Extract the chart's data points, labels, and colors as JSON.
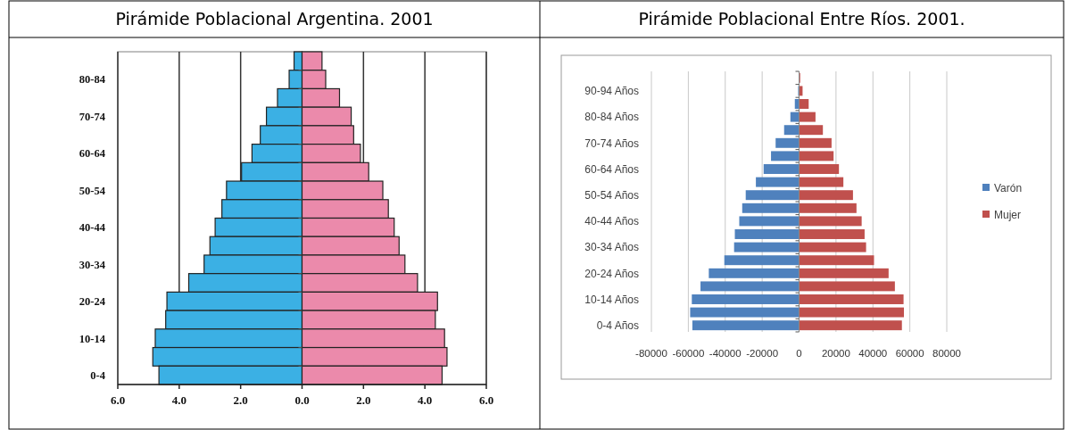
{
  "chart_data": [
    {
      "type": "bar",
      "title": "Pirámide Poblacional Argentina. 2001",
      "orientation": "horizontal",
      "stacked": true,
      "categories": [
        null,
        "80-84",
        null,
        "70-74",
        null,
        "60-64",
        null,
        "50-54",
        null,
        "40-44",
        null,
        "30-34",
        null,
        "20-24",
        null,
        "10-14",
        null,
        "0-4"
      ],
      "series": [
        {
          "color": "#3bb0e4",
          "values": [
            -0.26,
            -0.42,
            -0.8,
            -1.16,
            -1.36,
            -1.63,
            -1.97,
            -2.46,
            -2.61,
            -2.83,
            -3.0,
            -3.19,
            -3.69,
            -4.4,
            -4.44,
            -4.78,
            -4.86,
            -4.66
          ]
        },
        {
          "color": "#eb8aab",
          "values": [
            0.65,
            0.77,
            1.22,
            1.6,
            1.68,
            1.9,
            2.17,
            2.63,
            2.81,
            3.0,
            3.16,
            3.35,
            3.76,
            4.41,
            4.34,
            4.64,
            4.72,
            4.56
          ]
        }
      ],
      "xlim": [
        -6,
        6
      ],
      "xticks": [
        {
          "value": -6,
          "label": "6.0"
        },
        {
          "value": -4,
          "label": "4.0"
        },
        {
          "value": -2,
          "label": "2.0"
        },
        {
          "value": 0,
          "label": "0.0"
        },
        {
          "value": 2,
          "label": "2.0"
        },
        {
          "value": 4,
          "label": "4.0"
        },
        {
          "value": 6,
          "label": "6.0"
        }
      ],
      "grid": "x"
    },
    {
      "type": "bar",
      "title": "Pirámide Poblacional Entre Ríos. 2001.",
      "orientation": "horizontal",
      "stacked": true,
      "categories": [
        null,
        "90-94 Años",
        null,
        "80-84 Años",
        null,
        "70-74 Años",
        null,
        "60-64 Años",
        null,
        "50-54 Años",
        null,
        "40-44 Años",
        null,
        "30-34 Años",
        null,
        "20-24 Años",
        null,
        "10-14 Años",
        null,
        "0-4 Años"
      ],
      "series": [
        {
          "name": "Varón",
          "color": "#4f81bd",
          "values": [
            -100,
            -500,
            -2300,
            -4700,
            -8100,
            -12700,
            -15200,
            -19200,
            -23400,
            -28900,
            -30800,
            -32400,
            -34800,
            -35200,
            -40500,
            -48900,
            -53400,
            -58100,
            -59000,
            -57800
          ]
        },
        {
          "name": "Mujer",
          "color": "#c0504d",
          "values": [
            600,
            1900,
            5200,
            8900,
            12900,
            17600,
            18700,
            21600,
            24000,
            29200,
            31100,
            33900,
            35500,
            36300,
            40600,
            48500,
            51900,
            56600,
            56800,
            55700
          ]
        }
      ],
      "xlim": [
        -80000,
        80000
      ],
      "xticks": [
        -80000,
        -60000,
        -40000,
        -20000,
        0,
        20000,
        40000,
        60000,
        80000
      ],
      "grid": "x",
      "legend": "right"
    }
  ]
}
